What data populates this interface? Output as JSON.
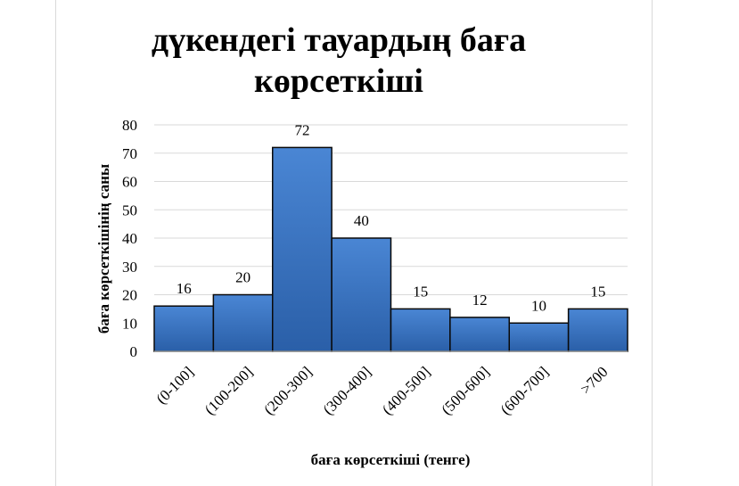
{
  "chart_data": {
    "type": "bar",
    "title_line1": "дүкендегі тауардың баға",
    "title_line2": "көрсеткіші",
    "xlabel": "баға көрсеткіші (тенге)",
    "ylabel": "баға көрсеткішінің саны",
    "categories": [
      "(0-100]",
      "(100-200]",
      "(200-300]",
      "(300-400]",
      "(400-500]",
      "(500-600]",
      "(600-700]",
      ">700"
    ],
    "values": [
      16,
      20,
      72,
      40,
      15,
      12,
      10,
      15
    ],
    "ylim": [
      0,
      80
    ],
    "yticks": [
      0,
      10,
      20,
      30,
      40,
      50,
      60,
      70,
      80
    ],
    "grid": true,
    "bar_color": "#3a74c4",
    "bar_edge": "#0a0a0a"
  }
}
